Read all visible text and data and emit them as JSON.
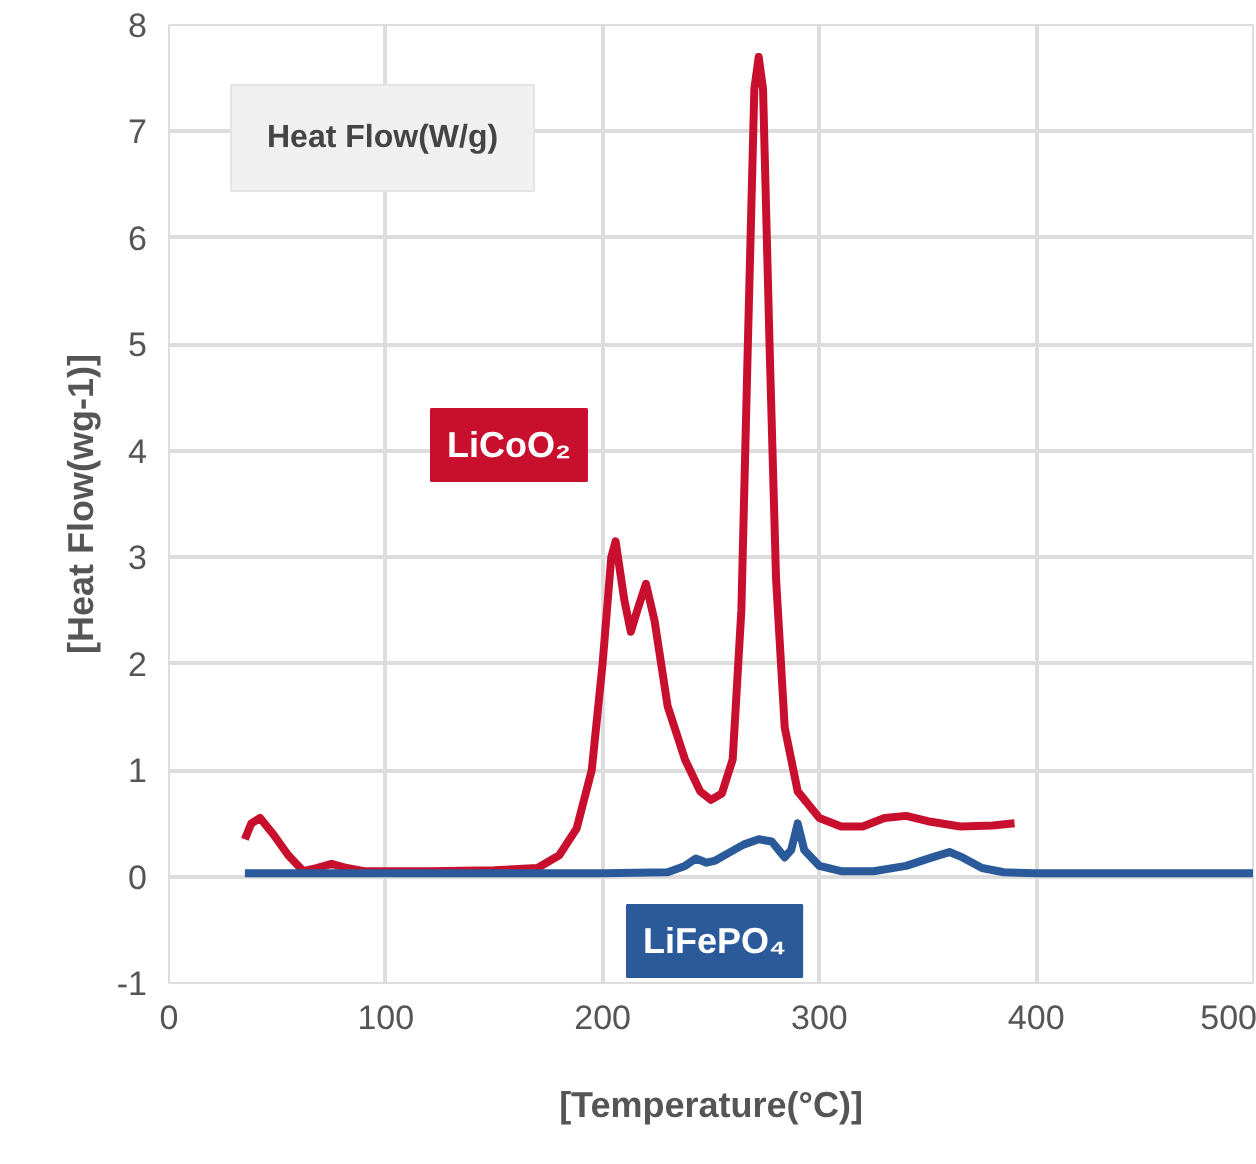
{
  "chart_data": {
    "type": "line",
    "title": "Heat Flow(W/g)",
    "xlabel": "[Temperature(°C)]",
    "ylabel": "[Heat Flow(wg-1)]",
    "xlim": [
      0,
      500
    ],
    "ylim": [
      -1,
      8
    ],
    "xticks": [
      0,
      100,
      200,
      300,
      400,
      500
    ],
    "yticks": [
      -1,
      0,
      1,
      2,
      3,
      4,
      5,
      6,
      7,
      8
    ],
    "grid": true,
    "marker": "none",
    "line_style": "solid",
    "series": [
      {
        "name": "LiCoO₂",
        "color": "#c8102e",
        "x": [
          35,
          38,
          42,
          48,
          55,
          62,
          68,
          75,
          82,
          90,
          120,
          150,
          170,
          180,
          188,
          195,
          200,
          204,
          206,
          210,
          213,
          216,
          220,
          224,
          230,
          238,
          245,
          250,
          255,
          260,
          264,
          267,
          270,
          272,
          274,
          277,
          280,
          284,
          290,
          300,
          310,
          320,
          330,
          340,
          350,
          365,
          380,
          390
        ],
        "values": [
          0.35,
          0.5,
          0.55,
          0.4,
          0.2,
          0.05,
          0.08,
          0.12,
          0.08,
          0.05,
          0.05,
          0.06,
          0.08,
          0.2,
          0.45,
          1.0,
          2.0,
          3.0,
          3.15,
          2.6,
          2.3,
          2.5,
          2.75,
          2.4,
          1.6,
          1.1,
          0.8,
          0.72,
          0.78,
          1.1,
          2.5,
          5.0,
          7.4,
          7.7,
          7.4,
          5.0,
          2.8,
          1.4,
          0.8,
          0.55,
          0.47,
          0.47,
          0.55,
          0.57,
          0.52,
          0.47,
          0.48,
          0.5
        ]
      },
      {
        "name": "LiFePO₄",
        "color": "#2a5a9a",
        "x": [
          35,
          100,
          200,
          230,
          238,
          243,
          248,
          252,
          258,
          265,
          272,
          278,
          284,
          287,
          290,
          293,
          300,
          310,
          325,
          340,
          352,
          360,
          366,
          375,
          385,
          400,
          500
        ],
        "values": [
          0.03,
          0.03,
          0.03,
          0.04,
          0.1,
          0.17,
          0.13,
          0.15,
          0.22,
          0.3,
          0.35,
          0.33,
          0.18,
          0.25,
          0.5,
          0.25,
          0.1,
          0.05,
          0.05,
          0.1,
          0.18,
          0.23,
          0.18,
          0.08,
          0.04,
          0.03,
          0.03
        ]
      }
    ]
  }
}
